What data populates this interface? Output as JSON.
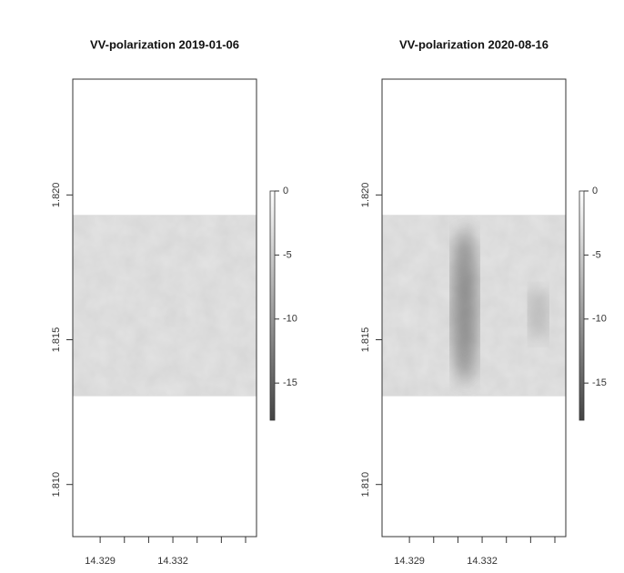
{
  "chart_data": [
    {
      "type": "raster",
      "title": "VV-polarization 2019-01-06",
      "xlim": [
        14.32787,
        14.33545
      ],
      "ylim": [
        1.8082,
        1.824
      ],
      "xticks": [
        14.329,
        14.332
      ],
      "xminor_ticks": [
        14.33,
        14.331,
        14.333,
        14.334,
        14.335
      ],
      "yticks": [
        {
          "value": 1.81,
          "label": "1.810"
        },
        1.815,
        {
          "value": 1.82,
          "label": "1.820"
        }
      ],
      "raster_extent": [
        14.32787,
        14.33545,
        1.81305,
        1.81931
      ],
      "colorbar": {
        "lim": [
          -17.9,
          0
        ],
        "ticks": [
          0,
          -5,
          -10,
          -15
        ],
        "colors": [
          "#444444",
          "#ffffff"
        ]
      }
    },
    {
      "type": "raster",
      "title": "VV-polarization 2020-08-16",
      "xlim": [
        14.32787,
        14.33545
      ],
      "ylim": [
        1.8082,
        1.824
      ],
      "xticks": [
        14.329,
        14.332
      ],
      "xminor_ticks": [
        14.33,
        14.331,
        14.333,
        14.334,
        14.335
      ],
      "yticks": [
        {
          "value": 1.81,
          "label": "1.810"
        },
        1.815,
        {
          "value": 1.82,
          "label": "1.820"
        }
      ],
      "raster_extent": [
        14.32787,
        14.33545,
        1.81305,
        1.81931
      ],
      "colorbar": {
        "lim": [
          -17.9,
          0
        ],
        "ticks": [
          0,
          -5,
          -10,
          -15
        ],
        "colors": [
          "#444444",
          "#ffffff"
        ]
      }
    }
  ]
}
